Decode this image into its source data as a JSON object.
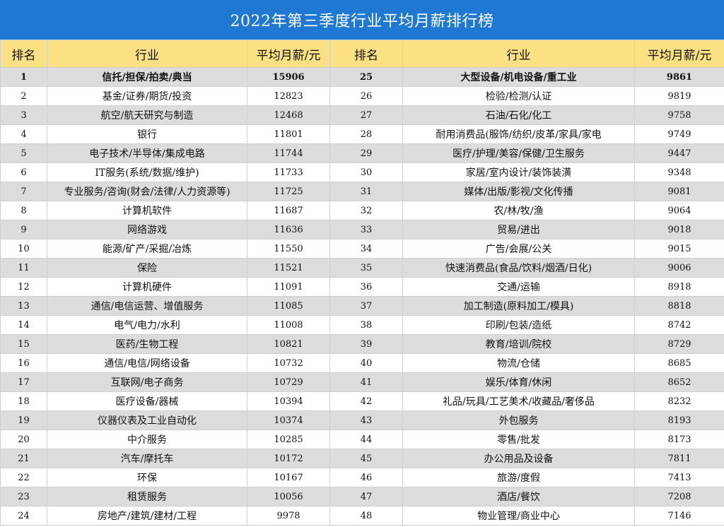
{
  "title": "2022年第三季度行业平均月薪排行榜",
  "headers": {
    "rank": "排名",
    "industry": "行业",
    "salary": "平均月薪/元"
  },
  "rows": [
    {
      "l": {
        "rank": "1",
        "industry": "信托/担保/拍卖/典当",
        "salary": "15906"
      },
      "r": {
        "rank": "25",
        "industry": "大型设备/机电设备/重工业",
        "salary": "9861"
      }
    },
    {
      "l": {
        "rank": "2",
        "industry": "基金/证券/期货/投资",
        "salary": "12823"
      },
      "r": {
        "rank": "26",
        "industry": "检验/检测/认证",
        "salary": "9819"
      }
    },
    {
      "l": {
        "rank": "3",
        "industry": "航空/航天研究与制造",
        "salary": "12468"
      },
      "r": {
        "rank": "27",
        "industry": "石油/石化/化工",
        "salary": "9758"
      }
    },
    {
      "l": {
        "rank": "4",
        "industry": "银行",
        "salary": "11801"
      },
      "r": {
        "rank": "28",
        "industry": "耐用消费品(服饰/纺织/皮革/家具/家电",
        "salary": "9749"
      }
    },
    {
      "l": {
        "rank": "5",
        "industry": "电子技术/半导体/集成电路",
        "salary": "11744"
      },
      "r": {
        "rank": "29",
        "industry": "医疗/护理/美容/保健/卫生服务",
        "salary": "9447"
      }
    },
    {
      "l": {
        "rank": "6",
        "industry": "IT服务(系统/数据/维护)",
        "salary": "11733"
      },
      "r": {
        "rank": "30",
        "industry": "家居/室内设计/装饰装潢",
        "salary": "9348"
      }
    },
    {
      "l": {
        "rank": "7",
        "industry": "专业服务/咨询(财会/法律/人力资源等)",
        "salary": "11725"
      },
      "r": {
        "rank": "31",
        "industry": "媒体/出版/影视/文化传播",
        "salary": "9081"
      }
    },
    {
      "l": {
        "rank": "8",
        "industry": "计算机软件",
        "salary": "11687"
      },
      "r": {
        "rank": "32",
        "industry": "农/林/牧/渔",
        "salary": "9064"
      }
    },
    {
      "l": {
        "rank": "9",
        "industry": "网络游戏",
        "salary": "11636"
      },
      "r": {
        "rank": "33",
        "industry": "贸易/进出",
        "salary": "9018"
      }
    },
    {
      "l": {
        "rank": "10",
        "industry": "能源/矿产/采掘/冶炼",
        "salary": "11550"
      },
      "r": {
        "rank": "34",
        "industry": "广告/会展/公关",
        "salary": "9015"
      }
    },
    {
      "l": {
        "rank": "11",
        "industry": "保险",
        "salary": "11521"
      },
      "r": {
        "rank": "35",
        "industry": "快速消费品(食品/饮料/烟酒/日化)",
        "salary": "9006"
      }
    },
    {
      "l": {
        "rank": "12",
        "industry": "计算机硬件",
        "salary": "11091"
      },
      "r": {
        "rank": "36",
        "industry": "交通/运输",
        "salary": "8918"
      }
    },
    {
      "l": {
        "rank": "13",
        "industry": "通信/电信运营、增值服务",
        "salary": "11085"
      },
      "r": {
        "rank": "37",
        "industry": "加工制造(原料加工/模具)",
        "salary": "8818"
      }
    },
    {
      "l": {
        "rank": "14",
        "industry": "电气/电力/水利",
        "salary": "11008"
      },
      "r": {
        "rank": "38",
        "industry": "印刷/包装/造纸",
        "salary": "8742"
      }
    },
    {
      "l": {
        "rank": "15",
        "industry": "医药/生物工程",
        "salary": "10821"
      },
      "r": {
        "rank": "39",
        "industry": "教育/培训/院校",
        "salary": "8729"
      }
    },
    {
      "l": {
        "rank": "16",
        "industry": "通信/电信/网络设备",
        "salary": "10732"
      },
      "r": {
        "rank": "40",
        "industry": "物流/仓储",
        "salary": "8685"
      }
    },
    {
      "l": {
        "rank": "17",
        "industry": "互联网/电子商务",
        "salary": "10729"
      },
      "r": {
        "rank": "41",
        "industry": "娱乐/体育/休闲",
        "salary": "8652"
      }
    },
    {
      "l": {
        "rank": "18",
        "industry": "医疗设备/器械",
        "salary": "10394"
      },
      "r": {
        "rank": "42",
        "industry": "礼品/玩具/工艺美术/收藏品/奢侈品",
        "salary": "8232"
      }
    },
    {
      "l": {
        "rank": "19",
        "industry": "仪器仪表及工业自动化",
        "salary": "10374"
      },
      "r": {
        "rank": "43",
        "industry": "外包服务",
        "salary": "8193"
      }
    },
    {
      "l": {
        "rank": "20",
        "industry": "中介服务",
        "salary": "10285"
      },
      "r": {
        "rank": "44",
        "industry": "零售/批发",
        "salary": "8173"
      }
    },
    {
      "l": {
        "rank": "21",
        "industry": "汽车/摩托车",
        "salary": "10172"
      },
      "r": {
        "rank": "45",
        "industry": "办公用品及设备",
        "salary": "7811"
      }
    },
    {
      "l": {
        "rank": "22",
        "industry": "环保",
        "salary": "10167"
      },
      "r": {
        "rank": "46",
        "industry": "旅游/度假",
        "salary": "7413"
      }
    },
    {
      "l": {
        "rank": "23",
        "industry": "租赁服务",
        "salary": "10056"
      },
      "r": {
        "rank": "47",
        "industry": "酒店/餐饮",
        "salary": "7208"
      }
    },
    {
      "l": {
        "rank": "24",
        "industry": "房地产/建筑/建材/工程",
        "salary": "9978"
      },
      "r": {
        "rank": "48",
        "industry": "物业管理/商业中心",
        "salary": "7146"
      }
    }
  ]
}
